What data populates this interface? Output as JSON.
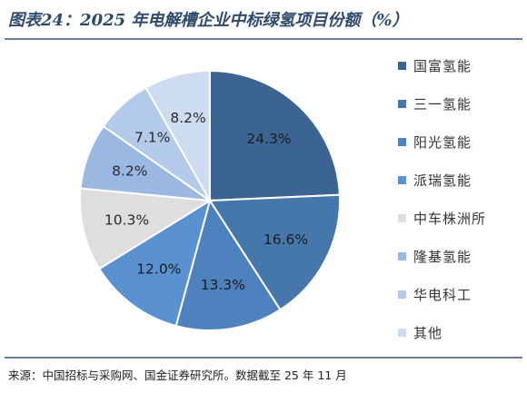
{
  "title": "图表24：2025 年电解槽企业中标绿氢项目份额（%）",
  "source": "来源：中国招标与采购网、国金证券研究所。数据截至 25 年 11 月",
  "chart_data": {
    "type": "pie",
    "title": "图表24：2025 年电解槽企业中标绿氢项目份额（%）",
    "unit": "%",
    "start_angle_deg": 0,
    "direction": "clockwise",
    "legend_position": "right",
    "slices": [
      {
        "label": "国富氢能",
        "value": 24.3,
        "display": "24.3%",
        "color": "#3b6493",
        "text_color": "#1c1c1c"
      },
      {
        "label": "三一氢能",
        "value": 16.6,
        "display": "16.6%",
        "color": "#4577ab",
        "text_color": "#1c1c1c"
      },
      {
        "label": "阳光氢能",
        "value": 13.3,
        "display": "13.3%",
        "color": "#4d82bf",
        "text_color": "#1c1c1c"
      },
      {
        "label": "派瑞氢能",
        "value": 12.0,
        "display": "12.0%",
        "color": "#5a91d1",
        "text_color": "#1c1c1c"
      },
      {
        "label": "中车株洲所",
        "value": 10.3,
        "display": "10.3%",
        "color": "#dedede",
        "text_color": "#2a2a2a"
      },
      {
        "label": "隆基氢能",
        "value": 8.2,
        "display": "8.2%",
        "color": "#9ab8e1",
        "text_color": "#2a2a2a"
      },
      {
        "label": "华电科工",
        "value": 7.1,
        "display": "7.1%",
        "color": "#b3caea",
        "text_color": "#2a2a2a"
      },
      {
        "label": "其他",
        "value": 8.2,
        "display": "8.2%",
        "color": "#cedcf1",
        "text_color": "#2a2a2a"
      }
    ]
  }
}
